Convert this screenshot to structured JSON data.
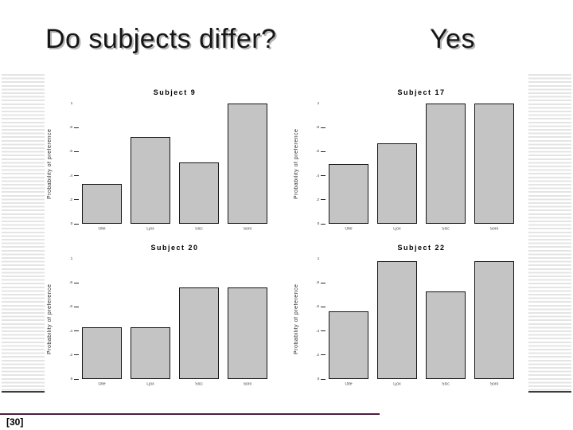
{
  "slide": {
    "title": "Do subjects differ?",
    "answer": "Yes",
    "page_ref": "[30]"
  },
  "colors": {
    "bar_fill": "#c4c4c4",
    "bar_border": "#151515",
    "footer_line": "#4d2040",
    "stripe_gray": "#e4e4e4",
    "title_shadow": "#b4b4b4"
  },
  "chart_data": [
    {
      "type": "bar",
      "title": "Subject 9",
      "categories": [
        "Olle",
        "Ljox",
        "Slcc",
        "Soro"
      ],
      "values": [
        0.33,
        0.72,
        0.51,
        1.0
      ],
      "xlabel": "",
      "ylabel": "Probability of preference",
      "ylim": [
        0,
        1
      ],
      "ytick_labels": [
        "1",
        ".8",
        ".6",
        ".4",
        ".2",
        "0"
      ],
      "grid": false,
      "legend": false
    },
    {
      "type": "bar",
      "title": "Subject 17",
      "categories": [
        "Olle",
        "Ljox",
        "Slcc",
        "Soro"
      ],
      "values": [
        0.5,
        0.67,
        1.0,
        1.0
      ],
      "xlabel": "",
      "ylabel": "Probability of preference",
      "ylim": [
        0,
        1
      ],
      "ytick_labels": [
        "1",
        ".8",
        ".6",
        ".4",
        ".2",
        "0"
      ],
      "grid": false,
      "legend": false
    },
    {
      "type": "bar",
      "title": "Subject 20",
      "categories": [
        "Olle",
        "Ljox",
        "Slcc",
        "Soro"
      ],
      "values": [
        0.43,
        0.43,
        0.76,
        0.76
      ],
      "xlabel": "",
      "ylabel": "Probability of preference",
      "ylim": [
        0,
        1
      ],
      "ytick_labels": [
        "1",
        ".8",
        ".6",
        ".4",
        ".2",
        "0"
      ],
      "grid": false,
      "legend": false
    },
    {
      "type": "bar",
      "title": "Subject 22",
      "categories": [
        "Olle",
        "Ljox",
        "Slcc",
        "Soro"
      ],
      "values": [
        0.56,
        0.98,
        0.73,
        0.98
      ],
      "xlabel": "",
      "ylabel": "Probability of preference",
      "ylim": [
        0,
        1
      ],
      "ytick_labels": [
        "1",
        ".8",
        ".6",
        ".4",
        ".2",
        "0"
      ],
      "grid": false,
      "legend": false
    }
  ]
}
